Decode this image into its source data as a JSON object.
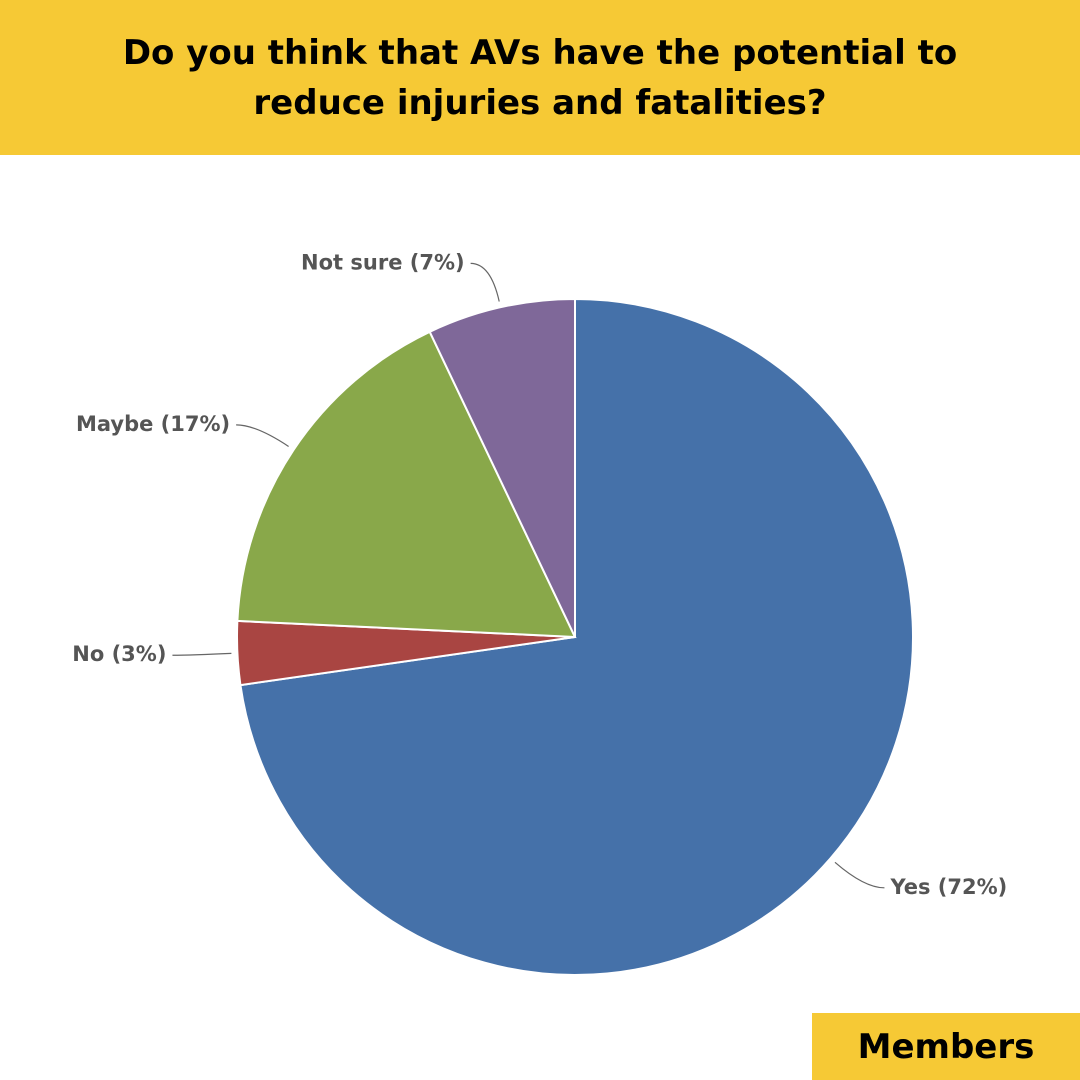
{
  "chart_data": {
    "type": "pie",
    "title": "Do you think that AVs have the potential to reduce injuries and fatalities?",
    "values": [
      72,
      3,
      17,
      7
    ],
    "value_labels": [
      "Yes (72%)",
      "No (3%)",
      "Maybe (17%)",
      "Not sure (7%)"
    ],
    "colors": [
      "#4571a9",
      "#a94542",
      "#89a84a",
      "#7f6899"
    ]
  },
  "badge": "Members"
}
